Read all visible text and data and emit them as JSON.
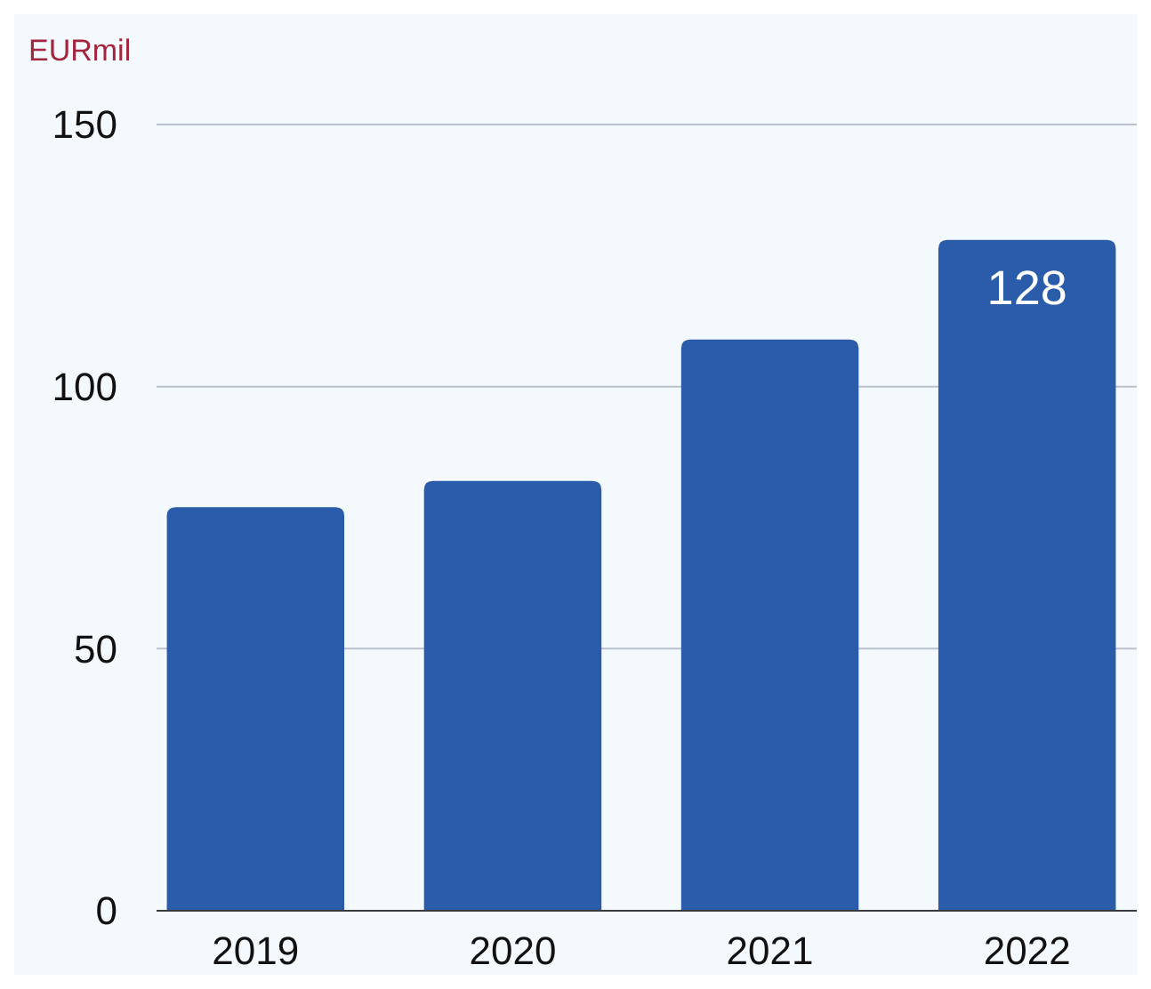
{
  "chart_data": {
    "type": "bar",
    "ylabel": "EURmil",
    "categories": [
      "2019",
      "2020",
      "2021",
      "2022"
    ],
    "values": [
      77,
      82,
      109,
      128
    ],
    "value_labels": [
      null,
      null,
      null,
      "128"
    ],
    "color": "#2a5caa",
    "ylim": [
      0,
      150
    ],
    "yticks": [
      0,
      50,
      100,
      150
    ],
    "grid": "y"
  }
}
